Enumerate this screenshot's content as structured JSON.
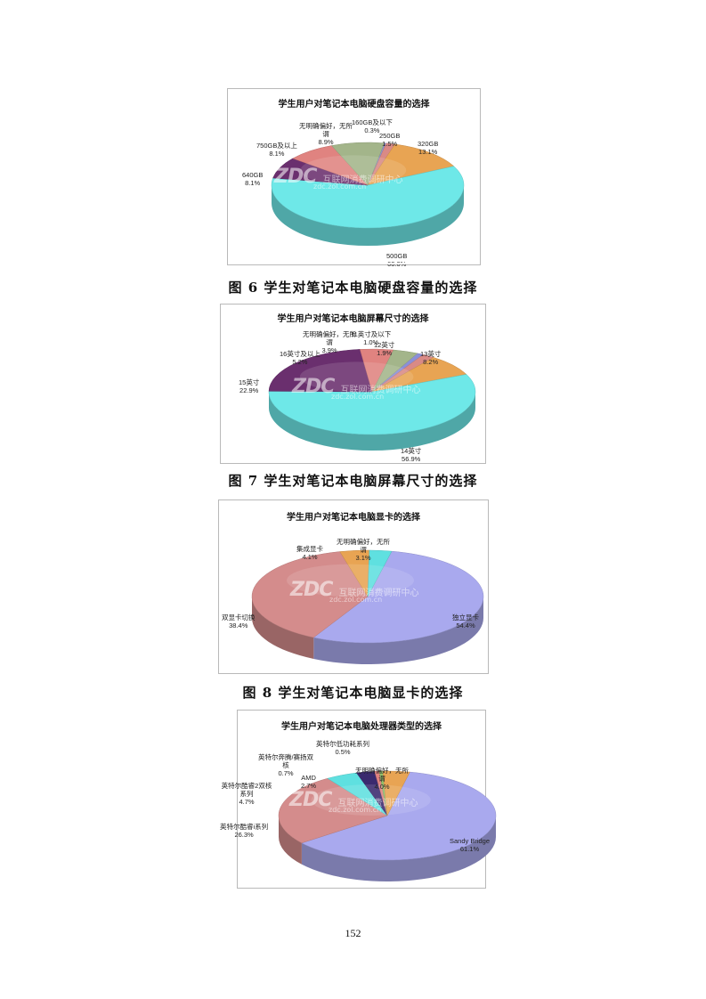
{
  "charts": [
    {
      "caption": "图 6  学生对笔记本电脑硬盘容量的选择",
      "title": "学生用户对笔记本电脑硬盘容量的选择",
      "watermark": {
        "logo": "ZDC",
        "cn": "互联网消费调研中心",
        "url": "zdc.zol.com.cn"
      }
    },
    {
      "caption": "图 7  学生对笔记本电脑屏幕尺寸的选择",
      "title": "学生用户对笔记本电脑屏幕尺寸的选择",
      "watermark": {
        "logo": "ZDC",
        "cn": "互联网消费调研中心",
        "url": "zdc.zol.com.cn"
      }
    },
    {
      "caption": "图 8  学生对笔记本电脑显卡的选择",
      "title": "学生用户对笔记本电脑显卡的选择",
      "watermark": {
        "logo": "ZDC",
        "cn": "互联网消费调研中心",
        "url": "zdc.zol.com.cn"
      }
    },
    {
      "caption": "",
      "title": "学生用户对笔记本电脑处理器类型的选择",
      "watermark": {
        "logo": "ZDC",
        "cn": "互联网消费调研中心",
        "url": "zdc.zol.com.cn"
      }
    }
  ],
  "page_number": "152",
  "chart_data": [
    {
      "type": "pie",
      "title": "学生用户对笔记本电脑硬盘容量的选择",
      "slices": [
        {
          "label": "160GB及以下",
          "value": 0.3,
          "value_label": "0.3%",
          "color": "#8a8fd8"
        },
        {
          "label": "250GB",
          "value": 1.5,
          "value_label": "1.5%",
          "color": "#d98a86"
        },
        {
          "label": "320GB",
          "value": 13.1,
          "value_label": "13.1%",
          "color": "#e8a453"
        },
        {
          "label": "500GB",
          "value": 60.0,
          "value_label": "60.0%",
          "color": "#6ee8e8"
        },
        {
          "label": "640GB",
          "value": 8.1,
          "value_label": "8.1%",
          "color": "#6a2f6e"
        },
        {
          "label": "750GB及以上",
          "value": 8.1,
          "value_label": "8.1%",
          "color": "#e08380"
        },
        {
          "label": "无明确偏好，无所谓",
          "value": 8.9,
          "value_label": "8.9%",
          "color": "#a3b58a"
        }
      ]
    },
    {
      "type": "pie",
      "title": "学生用户对笔记本电脑屏幕尺寸的选择",
      "slices": [
        {
          "label": "11英寸及以下",
          "value": 1.0,
          "value_label": "1.0%",
          "color": "#8a8fd8"
        },
        {
          "label": "12英寸",
          "value": 1.9,
          "value_label": "1.9%",
          "color": "#d98a86"
        },
        {
          "label": "13英寸",
          "value": 8.2,
          "value_label": "8.2%",
          "color": "#e8a453"
        },
        {
          "label": "14英寸",
          "value": 56.9,
          "value_label": "56.9%",
          "color": "#6ee8e8"
        },
        {
          "label": "15英寸",
          "value": 22.9,
          "value_label": "22.9%",
          "color": "#6a2f6e"
        },
        {
          "label": "16英寸及以上",
          "value": 5.2,
          "value_label": "5.2%",
          "color": "#e08380"
        },
        {
          "label": "无明确偏好，无所谓",
          "value": 3.9,
          "value_label": "3.9%",
          "color": "#a3b58a"
        }
      ]
    },
    {
      "type": "pie",
      "title": "学生用户对笔记本电脑显卡的选择",
      "slices": [
        {
          "label": "独立显卡",
          "value": 54.4,
          "value_label": "54.4%",
          "color": "#a9a9ee"
        },
        {
          "label": "双显卡切换",
          "value": 38.4,
          "value_label": "38.4%",
          "color": "#d48c8c"
        },
        {
          "label": "集成显卡",
          "value": 4.1,
          "value_label": "4.1%",
          "color": "#e8a453"
        },
        {
          "label": "无明确偏好，无所谓",
          "value": 3.1,
          "value_label": "3.1%",
          "color": "#5fe0e0"
        }
      ]
    },
    {
      "type": "pie",
      "title": "学生用户对笔记本电脑处理器类型的选择",
      "slices": [
        {
          "label": "Sandy Bridge",
          "value": 61.1,
          "value_label": "61.1%",
          "color": "#a9a9ee"
        },
        {
          "label": "英特尔酷睿i系列",
          "value": 26.3,
          "value_label": "26.3%",
          "color": "#d48c8c"
        },
        {
          "label": "英特尔酷睿2双核系列",
          "value": 4.7,
          "value_label": "4.7%",
          "color": "#5fe0e0"
        },
        {
          "label": "AMD",
          "value": 2.7,
          "value_label": "2.7%",
          "color": "#3a2a6e"
        },
        {
          "label": "英特尔奔腾/赛扬双核",
          "value": 0.7,
          "value_label": "0.7%",
          "color": "#e08380"
        },
        {
          "label": "英特尔低功耗系列",
          "value": 0.5,
          "value_label": "0.5%",
          "color": "#8fbf6a"
        },
        {
          "label": "无明确偏好，无所谓",
          "value": 4.0,
          "value_label": "4.0%",
          "color": "#e8a453"
        }
      ]
    }
  ]
}
